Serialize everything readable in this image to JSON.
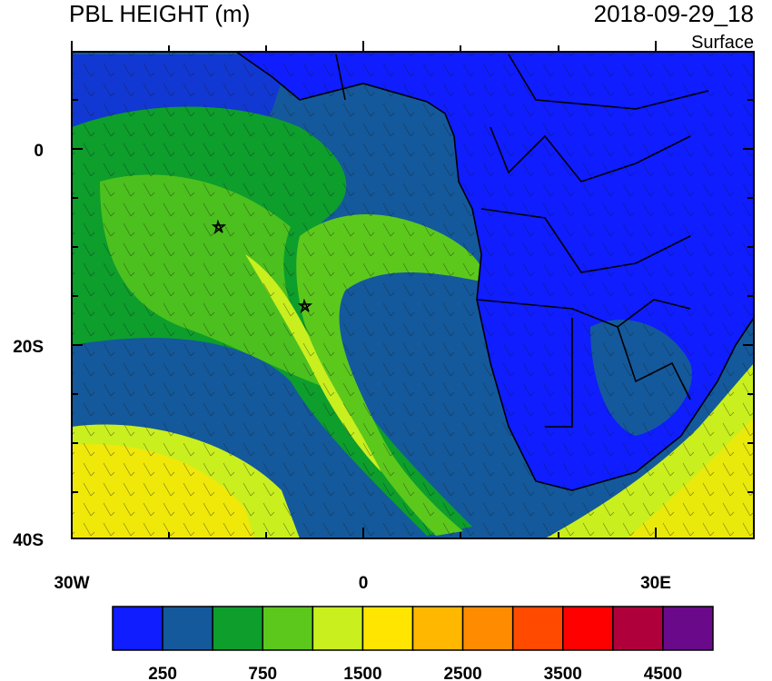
{
  "map": {
    "title": "PBL HEIGHT (m)",
    "valid_time": "2018-09-29_18",
    "level": "Surface",
    "lat_labels": [
      "0",
      "20S",
      "40S"
    ],
    "lon_labels": [
      "30W",
      "0",
      "30E"
    ],
    "colorbar": {
      "colors": [
        "#0f1dff",
        "#14599c",
        "#0d9e2c",
        "#5cc81c",
        "#c9ef1e",
        "#ffe500",
        "#ffb700",
        "#ff8c00",
        "#ff4a00",
        "#ff0000",
        "#b0003c",
        "#6a0a8a"
      ],
      "labels": [
        250,
        750,
        1500,
        2500,
        3500,
        4500
      ]
    }
  }
}
